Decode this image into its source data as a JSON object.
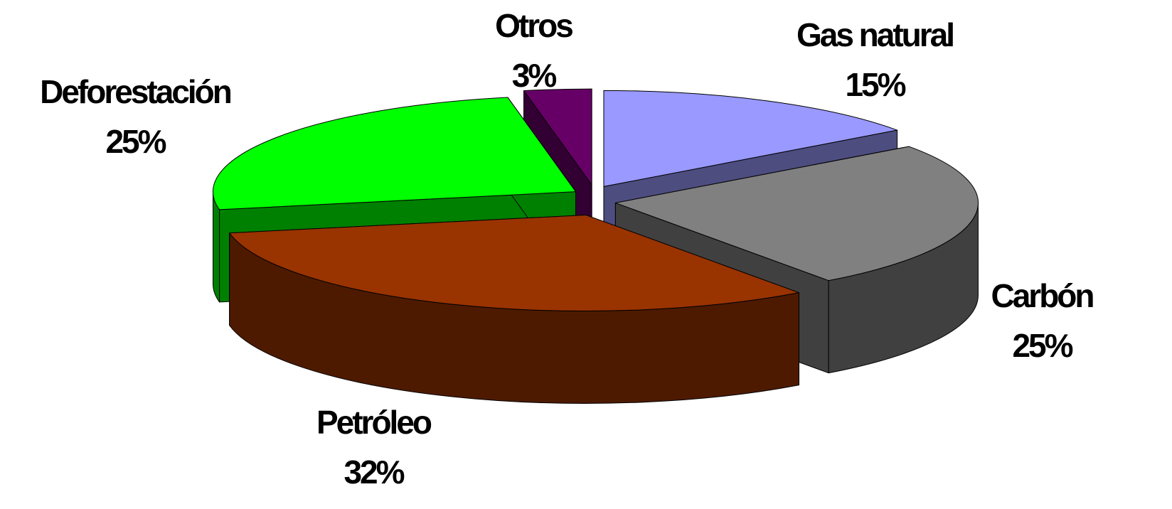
{
  "chart_data": {
    "type": "pie3d",
    "categories": [
      "Gas natural",
      "Carbón",
      "Petróleo",
      "Deforestación",
      "Otros"
    ],
    "values": [
      15,
      25,
      32,
      25,
      3
    ],
    "value_labels": [
      "15%",
      "25%",
      "32%",
      "25%",
      "3%"
    ],
    "colors": [
      "#9999ff",
      "#808080",
      "#993300",
      "#00ff00",
      "#660066"
    ]
  }
}
